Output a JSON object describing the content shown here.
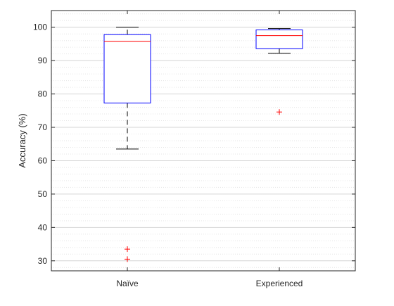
{
  "chart_data": {
    "type": "box",
    "title": "",
    "xlabel": "",
    "ylabel": "Accuracy (%)",
    "ylim": [
      27,
      105
    ],
    "yticks": [
      30,
      40,
      50,
      60,
      70,
      80,
      90,
      100
    ],
    "grid": "horizontal major and minor",
    "categories": [
      "Naïve",
      "Experienced"
    ],
    "boxes": [
      {
        "category": "Naïve",
        "whisker_low": 63.5,
        "q1": 77.3,
        "median": 95.8,
        "q3": 97.8,
        "whisker_high": 100,
        "outliers": [
          33.5,
          30.5
        ]
      },
      {
        "category": "Experienced",
        "whisker_low": 92.2,
        "q1": 93.6,
        "median": 97.5,
        "q3": 99.2,
        "whisker_high": 99.6,
        "outliers": [
          74.6
        ]
      }
    ],
    "colors": {
      "box": "#0000ff",
      "median": "#ff0000",
      "whisker": "#000000",
      "outlier": "#ff0000",
      "grid": "#d9d9d9",
      "axis": "#262626"
    }
  }
}
